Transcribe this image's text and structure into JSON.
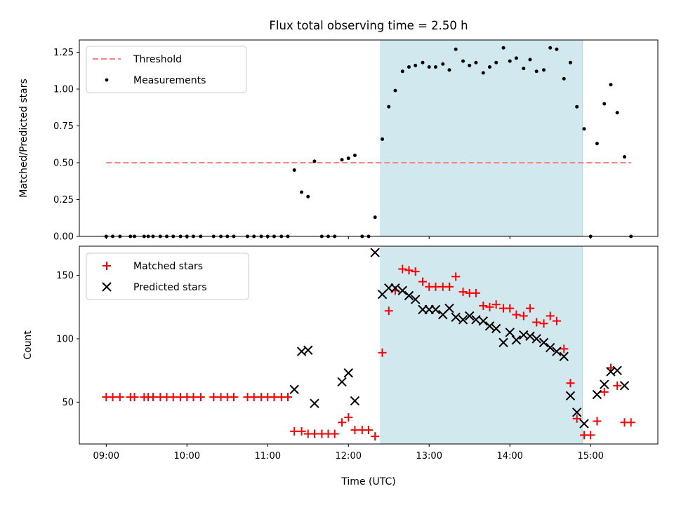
{
  "chart_data": [
    {
      "type": "scatter",
      "title": "Flux total observing time = 2.50 h",
      "xlabel": "",
      "ylabel": "Matched/Predicted stars",
      "xlim": [
        8.667,
        15.833
      ],
      "ylim": [
        0,
        1.3333
      ],
      "xticks": [
        9,
        10,
        11,
        12,
        13,
        14,
        15
      ],
      "yticks": [
        0,
        0.25,
        0.5,
        0.75,
        1.0,
        1.25
      ],
      "ytick_labels": [
        "0.00",
        "0.25",
        "0.50",
        "0.75",
        "1.00",
        "1.25"
      ],
      "shaded_span": {
        "x_start": 12.4,
        "x_end": 14.9
      },
      "threshold": {
        "name": "Threshold",
        "y": 0.5,
        "x_start": 9.0,
        "x_end": 15.5,
        "color": "#ff8080"
      },
      "series": [
        {
          "name": "Measurements",
          "marker": "dot",
          "color": "#000000",
          "points": [
            [
              9.0,
              0
            ],
            [
              9.08,
              0
            ],
            [
              9.17,
              0
            ],
            [
              9.3,
              0
            ],
            [
              9.35,
              0
            ],
            [
              9.47,
              0
            ],
            [
              9.52,
              0
            ],
            [
              9.58,
              0
            ],
            [
              9.67,
              0
            ],
            [
              9.75,
              0
            ],
            [
              9.83,
              0
            ],
            [
              9.92,
              0
            ],
            [
              10.0,
              0
            ],
            [
              10.08,
              0
            ],
            [
              10.17,
              0
            ],
            [
              10.33,
              0
            ],
            [
              10.42,
              0
            ],
            [
              10.5,
              0
            ],
            [
              10.58,
              0
            ],
            [
              10.75,
              0
            ],
            [
              10.83,
              0
            ],
            [
              10.92,
              0
            ],
            [
              11.0,
              0
            ],
            [
              11.08,
              0
            ],
            [
              11.17,
              0
            ],
            [
              11.25,
              0
            ],
            [
              11.33,
              0.45
            ],
            [
              11.42,
              0.3
            ],
            [
              11.5,
              0.27
            ],
            [
              11.58,
              0.51
            ],
            [
              11.67,
              0
            ],
            [
              11.75,
              0
            ],
            [
              11.83,
              0
            ],
            [
              11.92,
              0.52
            ],
            [
              12.0,
              0.53
            ],
            [
              12.08,
              0.55
            ],
            [
              12.17,
              0
            ],
            [
              12.25,
              0
            ],
            [
              12.33,
              0.13
            ],
            [
              12.42,
              0.66
            ],
            [
              12.5,
              0.88
            ],
            [
              12.58,
              0.99
            ],
            [
              12.67,
              1.12
            ],
            [
              12.75,
              1.15
            ],
            [
              12.83,
              1.16
            ],
            [
              12.92,
              1.18
            ],
            [
              13.0,
              1.15
            ],
            [
              13.08,
              1.15
            ],
            [
              13.17,
              1.17
            ],
            [
              13.25,
              1.13
            ],
            [
              13.33,
              1.27
            ],
            [
              13.42,
              1.19
            ],
            [
              13.5,
              1.16
            ],
            [
              13.58,
              1.18
            ],
            [
              13.67,
              1.11
            ],
            [
              13.75,
              1.15
            ],
            [
              13.83,
              1.18
            ],
            [
              13.92,
              1.28
            ],
            [
              14.0,
              1.19
            ],
            [
              14.08,
              1.21
            ],
            [
              14.17,
              1.14
            ],
            [
              14.25,
              1.2
            ],
            [
              14.33,
              1.12
            ],
            [
              14.42,
              1.13
            ],
            [
              14.5,
              1.28
            ],
            [
              14.58,
              1.27
            ],
            [
              14.67,
              1.07
            ],
            [
              14.75,
              1.18
            ],
            [
              14.83,
              0.88
            ],
            [
              14.92,
              0.73
            ],
            [
              15.0,
              0
            ],
            [
              15.08,
              0.63
            ],
            [
              15.17,
              0.9
            ],
            [
              15.25,
              1.03
            ],
            [
              15.33,
              0.84
            ],
            [
              15.42,
              0.54
            ],
            [
              15.5,
              0
            ]
          ]
        }
      ],
      "legend": {
        "position": "upper-left",
        "entries": [
          "Threshold",
          "Measurements"
        ]
      }
    },
    {
      "type": "scatter",
      "title": "",
      "xlabel": "Time (UTC)",
      "ylabel": "Count",
      "xlim": [
        8.667,
        15.833
      ],
      "ylim": [
        17,
        173
      ],
      "xticks": [
        9,
        10,
        11,
        12,
        13,
        14,
        15
      ],
      "xtick_labels": [
        "09:00",
        "10:00",
        "11:00",
        "12:00",
        "13:00",
        "14:00",
        "15:00"
      ],
      "yticks": [
        50,
        100,
        150
      ],
      "ytick_labels": [
        "50",
        "100",
        "150"
      ],
      "shaded_span": {
        "x_start": 12.4,
        "x_end": 14.9
      },
      "series": [
        {
          "name": "Matched stars",
          "marker": "plus",
          "color": "#ff0000",
          "points": [
            [
              9.0,
              54
            ],
            [
              9.08,
              54
            ],
            [
              9.17,
              54
            ],
            [
              9.3,
              54
            ],
            [
              9.35,
              54
            ],
            [
              9.47,
              54
            ],
            [
              9.52,
              54
            ],
            [
              9.58,
              54
            ],
            [
              9.67,
              54
            ],
            [
              9.75,
              54
            ],
            [
              9.83,
              54
            ],
            [
              9.92,
              54
            ],
            [
              10.0,
              54
            ],
            [
              10.08,
              54
            ],
            [
              10.17,
              54
            ],
            [
              10.33,
              54
            ],
            [
              10.42,
              54
            ],
            [
              10.5,
              54
            ],
            [
              10.58,
              54
            ],
            [
              10.75,
              54
            ],
            [
              10.83,
              54
            ],
            [
              10.92,
              54
            ],
            [
              11.0,
              54
            ],
            [
              11.08,
              54
            ],
            [
              11.17,
              54
            ],
            [
              11.25,
              54
            ],
            [
              11.33,
              27
            ],
            [
              11.42,
              27
            ],
            [
              11.5,
              25
            ],
            [
              11.58,
              25
            ],
            [
              11.67,
              25
            ],
            [
              11.75,
              25
            ],
            [
              11.83,
              25
            ],
            [
              11.92,
              34
            ],
            [
              12.0,
              38
            ],
            [
              12.08,
              28
            ],
            [
              12.17,
              28
            ],
            [
              12.25,
              28
            ],
            [
              12.33,
              23
            ],
            [
              12.42,
              89
            ],
            [
              12.5,
              122
            ],
            [
              12.58,
              138
            ],
            [
              12.67,
              155
            ],
            [
              12.75,
              154
            ],
            [
              12.83,
              153
            ],
            [
              12.92,
              145
            ],
            [
              13.0,
              141
            ],
            [
              13.08,
              141
            ],
            [
              13.17,
              141
            ],
            [
              13.25,
              141
            ],
            [
              13.33,
              149
            ],
            [
              13.42,
              137
            ],
            [
              13.5,
              136
            ],
            [
              13.58,
              136
            ],
            [
              13.67,
              126
            ],
            [
              13.75,
              125
            ],
            [
              13.83,
              127
            ],
            [
              13.92,
              124
            ],
            [
              14.0,
              124
            ],
            [
              14.08,
              119
            ],
            [
              14.17,
              118
            ],
            [
              14.25,
              124
            ],
            [
              14.33,
              113
            ],
            [
              14.42,
              112
            ],
            [
              14.5,
              118
            ],
            [
              14.58,
              114
            ],
            [
              14.67,
              92
            ],
            [
              14.75,
              65
            ],
            [
              14.83,
              37
            ],
            [
              14.92,
              24
            ],
            [
              15.0,
              24
            ],
            [
              15.08,
              35
            ],
            [
              15.17,
              58
            ],
            [
              15.25,
              77
            ],
            [
              15.33,
              63
            ],
            [
              15.42,
              34
            ],
            [
              15.5,
              34
            ]
          ]
        },
        {
          "name": "Predicted stars",
          "marker": "x",
          "color": "#000000",
          "points": [
            [
              11.33,
              60
            ],
            [
              11.42,
              90
            ],
            [
              11.5,
              91
            ],
            [
              11.58,
              49
            ],
            [
              11.92,
              66
            ],
            [
              12.0,
              73
            ],
            [
              12.08,
              51
            ],
            [
              12.33,
              168
            ],
            [
              12.42,
              135
            ],
            [
              12.5,
              140
            ],
            [
              12.58,
              140
            ],
            [
              12.67,
              138
            ],
            [
              12.75,
              134
            ],
            [
              12.83,
              131
            ],
            [
              12.92,
              123
            ],
            [
              13.0,
              123
            ],
            [
              13.08,
              123
            ],
            [
              13.17,
              119
            ],
            [
              13.25,
              124
            ],
            [
              13.33,
              117
            ],
            [
              13.42,
              115
            ],
            [
              13.5,
              118
            ],
            [
              13.58,
              115
            ],
            [
              13.67,
              114
            ],
            [
              13.75,
              110
            ],
            [
              13.83,
              108
            ],
            [
              13.92,
              97
            ],
            [
              14.0,
              105
            ],
            [
              14.08,
              99
            ],
            [
              14.17,
              103
            ],
            [
              14.25,
              102
            ],
            [
              14.33,
              100
            ],
            [
              14.42,
              97
            ],
            [
              14.5,
              93
            ],
            [
              14.58,
              90
            ],
            [
              14.67,
              86
            ],
            [
              14.75,
              55
            ],
            [
              14.83,
              42
            ],
            [
              14.92,
              33
            ],
            [
              15.08,
              56
            ],
            [
              15.17,
              64
            ],
            [
              15.25,
              74
            ],
            [
              15.33,
              75
            ],
            [
              15.42,
              63
            ]
          ]
        }
      ],
      "legend": {
        "position": "upper-left",
        "entries": [
          "Matched stars",
          "Predicted stars"
        ]
      }
    }
  ],
  "colors": {
    "shade": "#d1e8ef",
    "shade_edge": "#add8e6",
    "threshold": "#ff8080",
    "matched": "#ff0000",
    "predicted": "#000000",
    "measurement": "#000000"
  }
}
